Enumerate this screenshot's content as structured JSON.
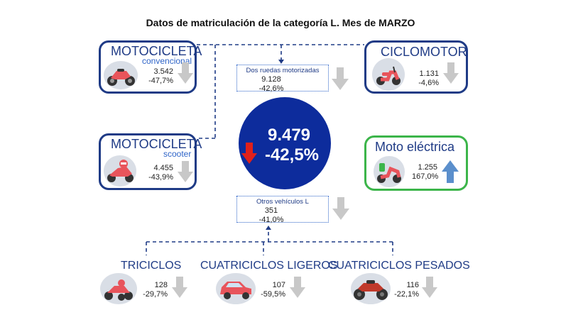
{
  "title": "Datos de matriculación de la categoría L. Mes de MARZO",
  "moto_convencional": {
    "title": "MOTOCICLETA",
    "subtitle": "convencional",
    "count": "3.542",
    "change": "-47,7%",
    "icon": "motorcycle-icon",
    "trend": "down"
  },
  "ciclomotor": {
    "title": "CICLOMOTOR",
    "count": "1.131",
    "change": "-4,6%",
    "icon": "moped-icon",
    "trend": "down"
  },
  "moto_scooter": {
    "title": "MOTOCICLETA",
    "subtitle": "scooter",
    "count": "4.455",
    "change": "-43,9%",
    "icon": "scooter-icon",
    "trend": "down"
  },
  "moto_electrica": {
    "title": "Moto eléctrica",
    "count": "1.255",
    "change": "167,0%",
    "icon": "electric-scooter-icon",
    "trend": "up"
  },
  "dos_ruedas": {
    "title": "Dos ruedas motorizadas",
    "count": "9.128",
    "change": "-42,6%",
    "trend": "down"
  },
  "total": {
    "count": "9.479",
    "change": "-42,5%",
    "trend": "down"
  },
  "otros": {
    "title": "Otros vehículos L",
    "count": "351",
    "change": "-41,0%",
    "trend": "down"
  },
  "triciclos": {
    "title": "TRICICLOS",
    "count": "128",
    "change": "-29,7%",
    "icon": "trike-icon",
    "trend": "down"
  },
  "cuatri_ligeros": {
    "title": "CUATRICICLOS LIGEROS",
    "count": "107",
    "change": "-59,5%",
    "icon": "microcar-icon",
    "trend": "down"
  },
  "cuatri_pesados": {
    "title": "CUATRICICLOS PESADOS",
    "count": "116",
    "change": "-22,1%",
    "icon": "quad-icon",
    "trend": "down"
  },
  "colors": {
    "navy": "#1f3b86",
    "blue": "#2e64c8",
    "green": "#3cb54a",
    "circle": "#0d2c9c",
    "arrow_gray": "#c8c8c8",
    "arrow_red": "#e0201b",
    "arrow_blue": "#5b8fcc"
  }
}
